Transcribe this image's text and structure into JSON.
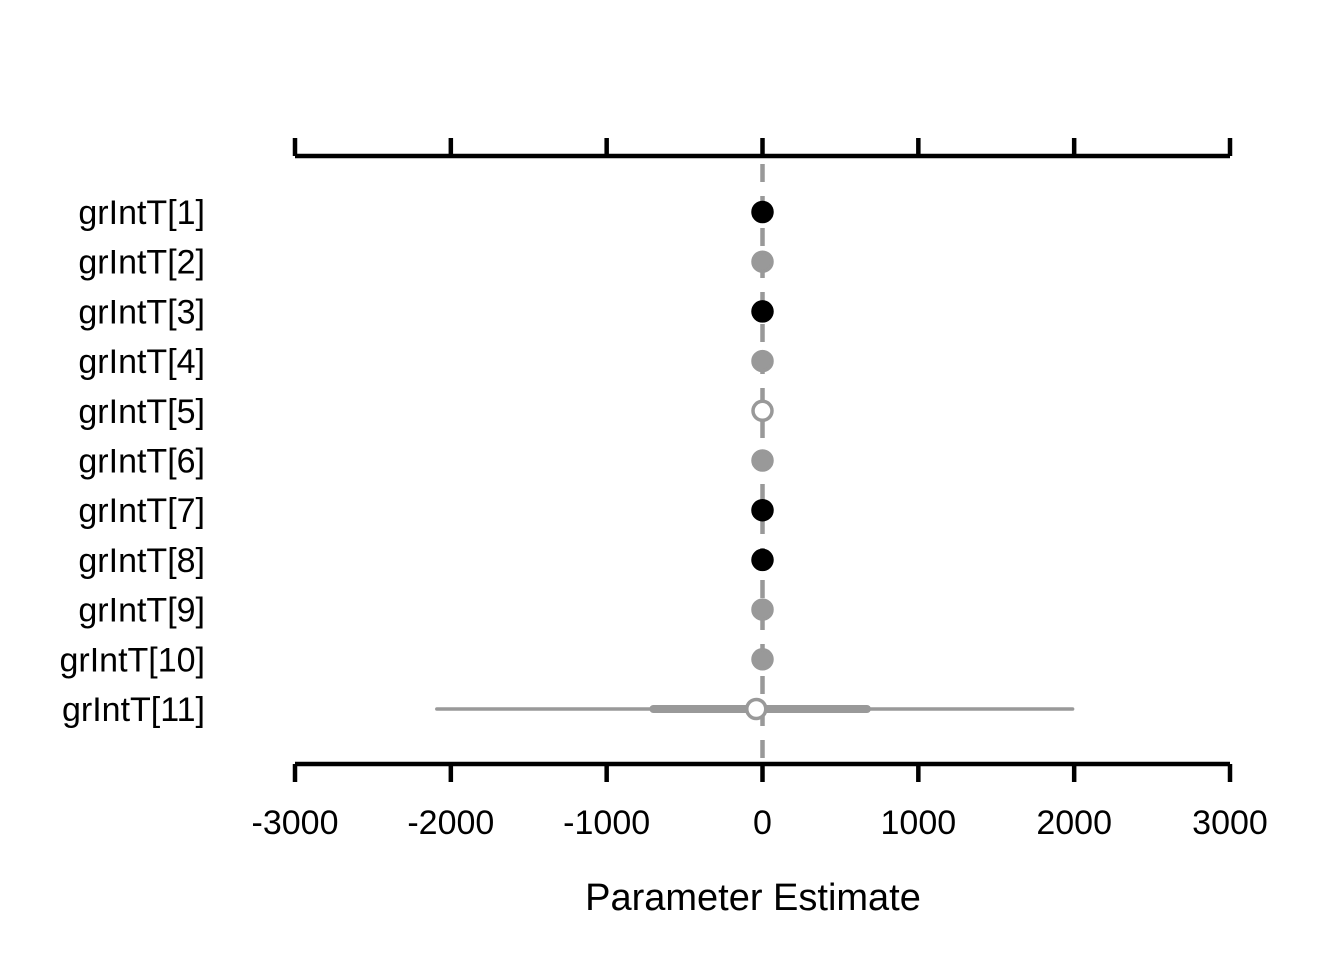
{
  "chart_data": {
    "type": "scatter",
    "subtype": "caterpillar",
    "title": "",
    "xlabel": "Parameter Estimate",
    "ylabel": "",
    "xlim": [
      -3000,
      3000
    ],
    "xticks": [
      -3000,
      -2000,
      -1000,
      0,
      1000,
      2000,
      3000
    ],
    "xtick_labels": [
      "-3000",
      "-2000",
      "-1000",
      "0",
      "1000",
      "2000",
      "3000"
    ],
    "reference_line": 0,
    "grid": false,
    "colors": {
      "excludes_zero": "#000000",
      "overlaps_zero": "#999999",
      "open_marker": "#ffffff",
      "reference_line": "#999999"
    },
    "parameters": [
      {
        "label": "grIntT[1]",
        "median": 0,
        "inner": [
          -2,
          2
        ],
        "outer": [
          -5,
          5
        ],
        "style": "black"
      },
      {
        "label": "grIntT[2]",
        "median": 0,
        "inner": [
          -4,
          4
        ],
        "outer": [
          -10,
          10
        ],
        "style": "gray"
      },
      {
        "label": "grIntT[3]",
        "median": 0,
        "inner": [
          -2,
          2
        ],
        "outer": [
          -5,
          5
        ],
        "style": "black"
      },
      {
        "label": "grIntT[4]",
        "median": 0,
        "inner": [
          -4,
          4
        ],
        "outer": [
          -10,
          10
        ],
        "style": "gray"
      },
      {
        "label": "grIntT[5]",
        "median": 0,
        "inner": [
          -4,
          4
        ],
        "outer": [
          -10,
          10
        ],
        "style": "open"
      },
      {
        "label": "grIntT[6]",
        "median": 0,
        "inner": [
          -4,
          4
        ],
        "outer": [
          -10,
          10
        ],
        "style": "gray"
      },
      {
        "label": "grIntT[7]",
        "median": 0,
        "inner": [
          -2,
          2
        ],
        "outer": [
          -5,
          5
        ],
        "style": "black"
      },
      {
        "label": "grIntT[8]",
        "median": 0,
        "inner": [
          -2,
          2
        ],
        "outer": [
          -5,
          5
        ],
        "style": "black"
      },
      {
        "label": "grIntT[9]",
        "median": 0,
        "inner": [
          -10,
          10
        ],
        "outer": [
          -25,
          25
        ],
        "style": "gray"
      },
      {
        "label": "grIntT[10]",
        "median": 0,
        "inner": [
          -6,
          6
        ],
        "outer": [
          -15,
          15
        ],
        "style": "gray"
      },
      {
        "label": "grIntT[11]",
        "median": -40,
        "inner": [
          -700,
          670
        ],
        "outer": [
          -2090,
          1990
        ],
        "style": "open"
      }
    ]
  }
}
